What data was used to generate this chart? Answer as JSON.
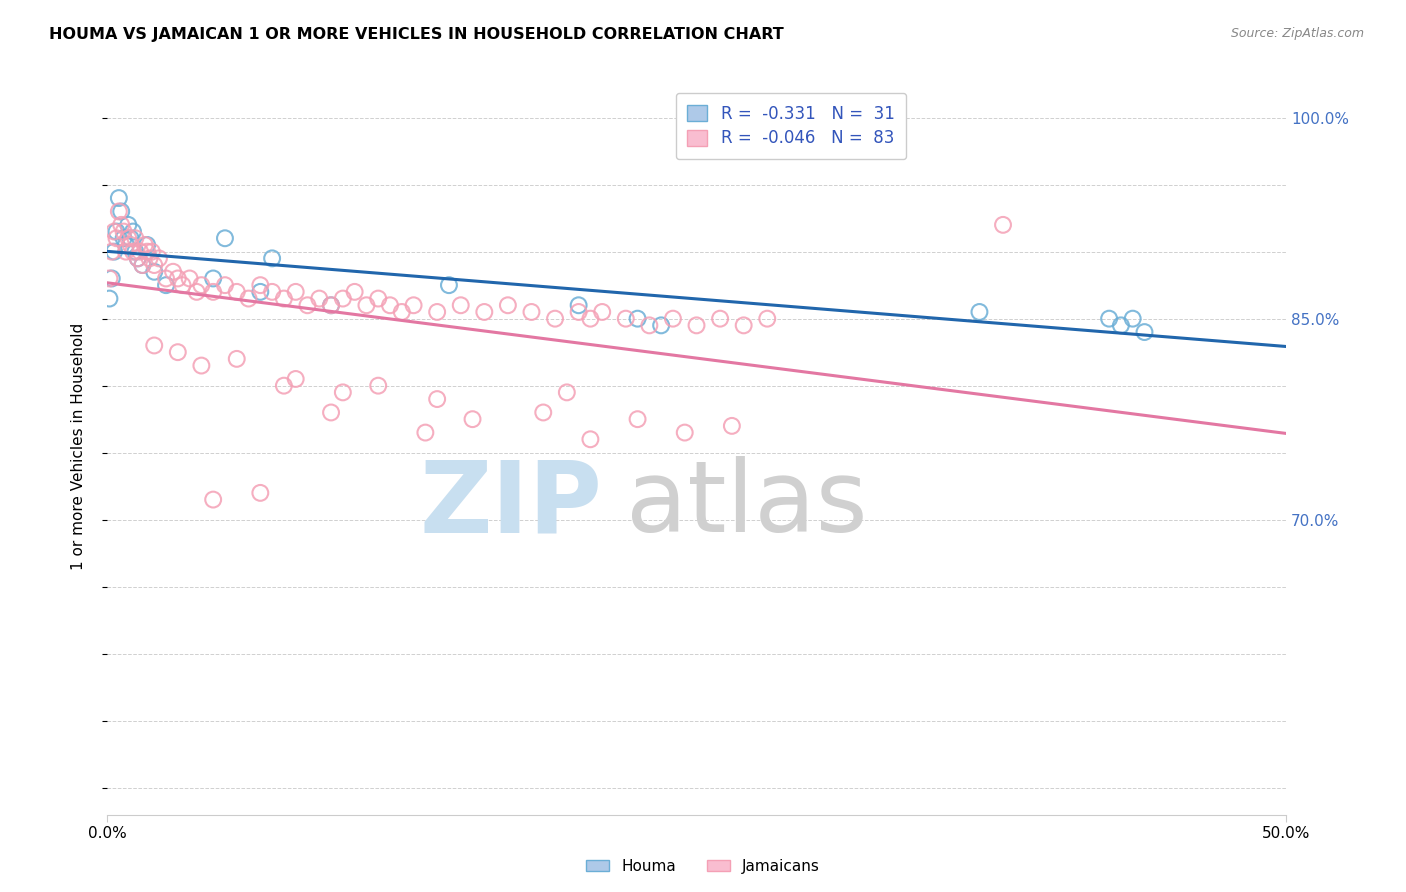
{
  "title": "HOUMA VS JAMAICAN 1 OR MORE VEHICLES IN HOUSEHOLD CORRELATION CHART",
  "source": "Source: ZipAtlas.com",
  "ylabel": "1 or more Vehicles in Household",
  "yticks": [
    50.0,
    55.0,
    60.0,
    65.0,
    70.0,
    75.0,
    80.0,
    85.0,
    90.0,
    95.0,
    100.0
  ],
  "ytick_labels": [
    "",
    "",
    "",
    "",
    "70.0%",
    "",
    "",
    "85.0%",
    "",
    "",
    "100.0%"
  ],
  "xlim": [
    0.0,
    50.0
  ],
  "ylim": [
    48.0,
    103.0
  ],
  "houma_color_fill": "none",
  "houma_color_edge": "#6baed6",
  "jamaican_color_fill": "none",
  "jamaican_color_edge": "#f4a0b5",
  "houma_line_color": "#2166ac",
  "jamaican_line_color": "#e377a2",
  "houma_R": -0.331,
  "houma_N": 31,
  "jamaican_R": -0.046,
  "jamaican_N": 83,
  "houma_x": [
    0.1,
    0.2,
    0.3,
    0.4,
    0.5,
    0.6,
    0.7,
    0.8,
    0.9,
    1.0,
    1.1,
    1.2,
    1.3,
    1.5,
    1.7,
    2.0,
    2.5,
    4.5,
    5.0,
    6.5,
    7.0,
    9.5,
    14.5,
    20.0,
    22.5,
    23.5,
    37.0,
    42.5,
    43.0,
    43.5,
    44.0
  ],
  "houma_y": [
    86.5,
    88.0,
    90.0,
    91.5,
    94.0,
    93.0,
    91.0,
    90.5,
    92.0,
    91.0,
    91.5,
    90.0,
    89.5,
    89.0,
    90.5,
    88.5,
    87.5,
    88.0,
    91.0,
    87.0,
    89.5,
    86.0,
    87.5,
    86.0,
    85.0,
    84.5,
    85.5,
    85.0,
    84.5,
    85.0,
    84.0
  ],
  "jamaican_x": [
    0.1,
    0.2,
    0.3,
    0.4,
    0.5,
    0.6,
    0.7,
    0.8,
    0.9,
    1.0,
    1.1,
    1.2,
    1.3,
    1.4,
    1.5,
    1.6,
    1.7,
    1.8,
    1.9,
    2.0,
    2.2,
    2.5,
    2.8,
    3.0,
    3.2,
    3.5,
    3.8,
    4.0,
    4.5,
    5.0,
    5.5,
    6.0,
    6.5,
    7.0,
    7.5,
    8.0,
    8.5,
    9.0,
    9.5,
    10.0,
    10.5,
    11.0,
    11.5,
    12.0,
    12.5,
    13.0,
    14.0,
    15.0,
    16.0,
    17.0,
    18.0,
    19.0,
    20.0,
    20.5,
    21.0,
    22.0,
    23.0,
    24.0,
    25.0,
    26.0,
    27.0,
    28.0,
    7.5,
    9.5,
    10.0,
    13.5,
    15.5,
    18.5,
    20.5,
    22.5,
    24.5,
    26.5,
    4.5,
    6.5,
    38.0,
    2.0,
    3.0,
    4.0,
    5.5,
    8.0,
    11.5,
    14.0,
    19.5
  ],
  "jamaican_y": [
    88.0,
    90.0,
    91.5,
    91.0,
    93.0,
    92.0,
    91.5,
    90.0,
    91.0,
    90.5,
    90.0,
    91.0,
    89.5,
    90.0,
    89.0,
    90.5,
    90.0,
    89.5,
    90.0,
    89.0,
    89.5,
    88.0,
    88.5,
    88.0,
    87.5,
    88.0,
    87.0,
    87.5,
    87.0,
    87.5,
    87.0,
    86.5,
    87.5,
    87.0,
    86.5,
    87.0,
    86.0,
    86.5,
    86.0,
    86.5,
    87.0,
    86.0,
    86.5,
    86.0,
    85.5,
    86.0,
    85.5,
    86.0,
    85.5,
    86.0,
    85.5,
    85.0,
    85.5,
    85.0,
    85.5,
    85.0,
    84.5,
    85.0,
    84.5,
    85.0,
    84.5,
    85.0,
    80.0,
    78.0,
    79.5,
    76.5,
    77.5,
    78.0,
    76.0,
    77.5,
    76.5,
    77.0,
    71.5,
    72.0,
    92.0,
    83.0,
    82.5,
    81.5,
    82.0,
    80.5,
    80.0,
    79.0,
    79.5
  ],
  "background_color": "#ffffff",
  "grid_color": "#d0d0d0",
  "legend_box_color": "#ffffff",
  "legend_edge_color": "#cccccc",
  "right_ytick_color": "#4472c4",
  "watermark_zip_color": "#c8dff0",
  "watermark_atlas_color": "#d0d0d0"
}
